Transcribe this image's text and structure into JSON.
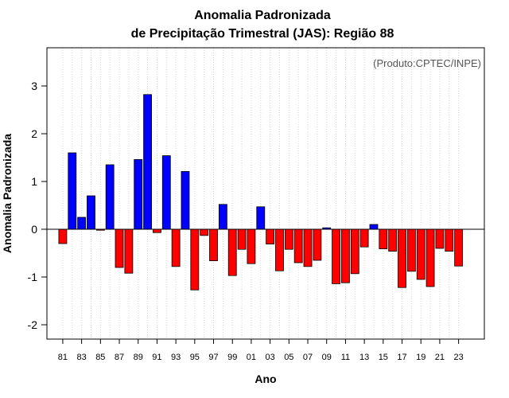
{
  "chart_data": {
    "type": "bar",
    "title": [
      "Anomalia Padronizada",
      "de Precipitação Trimestral (JAS): Região 88"
    ],
    "annotation": "(Produto:CPTEC/INPE)",
    "xlabel": "Ano",
    "ylabel": "Anomalia Padronizada",
    "ylim": [
      -2.3,
      3.8
    ],
    "yticks": [
      -2,
      -1,
      0,
      1,
      2,
      3
    ],
    "xtick_labels": [
      "81",
      "83",
      "85",
      "87",
      "89",
      "91",
      "93",
      "95",
      "97",
      "99",
      "01",
      "03",
      "05",
      "07",
      "09",
      "11",
      "13",
      "15",
      "17",
      "19",
      "21",
      "23"
    ],
    "categories": [
      "1981",
      "1982",
      "1983",
      "1984",
      "1985",
      "1986",
      "1987",
      "1988",
      "1989",
      "1990",
      "1991",
      "1992",
      "1993",
      "1994",
      "1995",
      "1996",
      "1997",
      "1998",
      "1999",
      "2000",
      "2001",
      "2002",
      "2003",
      "2004",
      "2005",
      "2006",
      "2007",
      "2008",
      "2009",
      "2010",
      "2011",
      "2012",
      "2013",
      "2014",
      "2015",
      "2016",
      "2017",
      "2018",
      "2019",
      "2020",
      "2021",
      "2022",
      "2023"
    ],
    "values": [
      -0.3,
      1.6,
      0.25,
      0.7,
      -0.02,
      1.35,
      -0.8,
      -0.92,
      1.46,
      2.82,
      -0.07,
      1.54,
      -0.78,
      1.21,
      -1.27,
      -0.13,
      -0.66,
      0.52,
      -0.97,
      -0.42,
      -0.72,
      0.47,
      -0.31,
      -0.87,
      -0.42,
      -0.7,
      -0.78,
      -0.65,
      0.03,
      -1.14,
      -1.12,
      -0.93,
      -0.37,
      0.1,
      -0.41,
      -0.46,
      -1.22,
      -0.88,
      -1.05,
      -1.2,
      -0.4,
      -0.46,
      -0.77
    ],
    "colors": {
      "positive": "#0000ff",
      "negative": "#ff0000"
    },
    "grid": true
  }
}
